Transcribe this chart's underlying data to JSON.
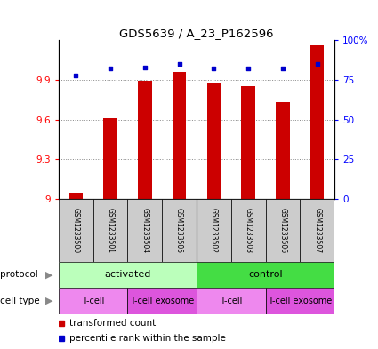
{
  "title": "GDS5639 / A_23_P162596",
  "samples": [
    "GSM1233500",
    "GSM1233501",
    "GSM1233504",
    "GSM1233505",
    "GSM1233502",
    "GSM1233503",
    "GSM1233506",
    "GSM1233507"
  ],
  "transformed_counts": [
    9.05,
    9.61,
    9.89,
    9.96,
    9.88,
    9.85,
    9.73,
    10.16
  ],
  "percentile_ranks": [
    78,
    82,
    83,
    85,
    82,
    82,
    82,
    85
  ],
  "ylim_left": [
    9.0,
    10.2
  ],
  "ylim_right": [
    0,
    100
  ],
  "yticks_left": [
    9.0,
    9.3,
    9.6,
    9.9
  ],
  "ytick_labels_left": [
    "9",
    "9.3",
    "9.6",
    "9.9"
  ],
  "yticks_right": [
    0,
    25,
    50,
    75,
    100
  ],
  "ytick_labels_right": [
    "0",
    "25",
    "50",
    "75",
    "100%"
  ],
  "bar_color": "#cc0000",
  "dot_color": "#0000cc",
  "bar_bottom": 9.0,
  "protocol_groups": [
    {
      "label": "activated",
      "start": 0,
      "end": 3,
      "color": "#bbffbb"
    },
    {
      "label": "control",
      "start": 4,
      "end": 7,
      "color": "#44dd44"
    }
  ],
  "cell_type_groups": [
    {
      "label": "T-cell",
      "start": 0,
      "end": 1,
      "color": "#ee88ee"
    },
    {
      "label": "T-cell exosome",
      "start": 2,
      "end": 3,
      "color": "#dd55dd"
    },
    {
      "label": "T-cell",
      "start": 4,
      "end": 5,
      "color": "#ee88ee"
    },
    {
      "label": "T-cell exosome",
      "start": 6,
      "end": 7,
      "color": "#dd55dd"
    }
  ],
  "legend_items": [
    {
      "label": "transformed count",
      "color": "#cc0000"
    },
    {
      "label": "percentile rank within the sample",
      "color": "#0000cc"
    }
  ],
  "arrow_color": "#888888",
  "sample_box_color": "#cccccc",
  "grid_color": "#888888"
}
